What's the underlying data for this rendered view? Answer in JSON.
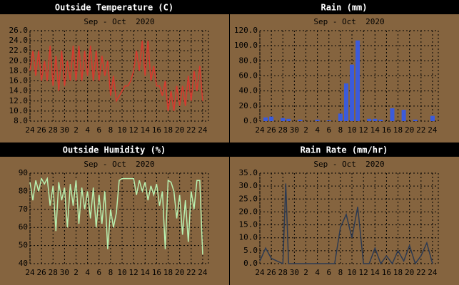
{
  "chart_data": [
    {
      "type": "line",
      "title": "Outside Temperature (C)",
      "subtitle": "Sep - Oct  2020",
      "color": "#d8382e",
      "x": [
        0,
        0.5,
        1,
        1.5,
        2,
        2.5,
        3,
        3.5,
        4,
        4.5,
        5,
        5.5,
        6,
        6.5,
        7,
        7.5,
        8,
        8.5,
        9,
        9.5,
        10,
        10.5,
        11,
        11.5,
        12,
        12.5,
        13,
        13.5,
        14,
        14.5,
        15,
        15.5,
        16,
        16.5,
        17,
        17.5,
        18,
        18.5,
        19,
        19.5,
        20,
        20.5,
        21,
        21.5,
        22,
        22.5,
        23,
        23.5,
        24,
        24.5,
        25,
        25.5,
        26,
        26.5,
        27,
        27.5,
        28,
        28.5,
        29,
        29.5,
        30
      ],
      "values": [
        18,
        22,
        17,
        22,
        16,
        20,
        16,
        23,
        15,
        21,
        14,
        22,
        15,
        20,
        16,
        23,
        16,
        23,
        16,
        22,
        17,
        23,
        16,
        22,
        16,
        21,
        17,
        20,
        13,
        17,
        12,
        13,
        14,
        15,
        15,
        16,
        18,
        22,
        18,
        24,
        17,
        24,
        16,
        19,
        15,
        15,
        13,
        16,
        10,
        14,
        10,
        15,
        11,
        15,
        11,
        17,
        12,
        18,
        14,
        19,
        12
      ],
      "xlim": [
        0,
        31
      ],
      "xticks": [
        {
          "value": 0,
          "label": "24"
        },
        {
          "value": 2,
          "label": "26"
        },
        {
          "value": 4,
          "label": "28"
        },
        {
          "value": 6,
          "label": "30"
        },
        {
          "value": 8,
          "label": "2"
        },
        {
          "value": 10,
          "label": "4"
        },
        {
          "value": 12,
          "label": "6"
        },
        {
          "value": 14,
          "label": "8"
        },
        {
          "value": 16,
          "label": "10"
        },
        {
          "value": 18,
          "label": "12"
        },
        {
          "value": 20,
          "label": "14"
        },
        {
          "value": 22,
          "label": "16"
        },
        {
          "value": 24,
          "label": "18"
        },
        {
          "value": 26,
          "label": "20"
        },
        {
          "value": 28,
          "label": "22"
        },
        {
          "value": 30,
          "label": "24"
        }
      ],
      "ylim": [
        8,
        26
      ],
      "yticks": [
        {
          "value": 8,
          "label": "8.0"
        },
        {
          "value": 10,
          "label": "10.0"
        },
        {
          "value": 12,
          "label": "12.0"
        },
        {
          "value": 14,
          "label": "14.0"
        },
        {
          "value": 16,
          "label": "16.0"
        },
        {
          "value": 18,
          "label": "18.0"
        },
        {
          "value": 20,
          "label": "20.0"
        },
        {
          "value": 22,
          "label": "22.0"
        },
        {
          "value": 24,
          "label": "24.0"
        },
        {
          "value": 26,
          "label": "26.0"
        }
      ],
      "grid": true
    },
    {
      "type": "bar",
      "title": "Rain (mm)",
      "subtitle": "Sep - Oct  2020",
      "color": "#3b5bdb",
      "x": [
        1,
        2,
        4,
        5,
        7,
        10,
        12,
        14,
        15,
        16,
        17,
        19,
        20,
        21,
        23,
        25,
        27,
        30
      ],
      "values": [
        5,
        6,
        4,
        3,
        2,
        2,
        1,
        10,
        50,
        75,
        107,
        3,
        3,
        2,
        17,
        15,
        2,
        7
      ],
      "xlim": [
        0,
        31
      ],
      "xticks": [
        {
          "value": 0,
          "label": "24"
        },
        {
          "value": 2,
          "label": "26"
        },
        {
          "value": 4,
          "label": "28"
        },
        {
          "value": 6,
          "label": "30"
        },
        {
          "value": 8,
          "label": "2"
        },
        {
          "value": 10,
          "label": "4"
        },
        {
          "value": 12,
          "label": "6"
        },
        {
          "value": 14,
          "label": "8"
        },
        {
          "value": 16,
          "label": "10"
        },
        {
          "value": 18,
          "label": "12"
        },
        {
          "value": 20,
          "label": "14"
        },
        {
          "value": 22,
          "label": "16"
        },
        {
          "value": 24,
          "label": "18"
        },
        {
          "value": 26,
          "label": "20"
        },
        {
          "value": 28,
          "label": "22"
        },
        {
          "value": 30,
          "label": "24"
        }
      ],
      "ylim": [
        0,
        120
      ],
      "yticks": [
        {
          "value": 0,
          "label": "0.0"
        },
        {
          "value": 20,
          "label": "20.0"
        },
        {
          "value": 40,
          "label": "40.0"
        },
        {
          "value": 60,
          "label": "60.0"
        },
        {
          "value": 80,
          "label": "80.0"
        },
        {
          "value": 100,
          "label": "100.0"
        },
        {
          "value": 120,
          "label": "120.0"
        }
      ],
      "grid": true
    },
    {
      "type": "line",
      "title": "Outside Humidity (%)",
      "subtitle": "Sep - Oct  2020",
      "color": "#b8f0b0",
      "x": [
        0,
        0.5,
        1,
        1.5,
        2,
        2.5,
        3,
        3.5,
        4,
        4.5,
        5,
        5.5,
        6,
        6.5,
        7,
        7.5,
        8,
        8.5,
        9,
        9.5,
        10,
        10.5,
        11,
        11.5,
        12,
        12.5,
        13,
        13.5,
        14,
        14.5,
        15,
        15.5,
        16,
        16.5,
        17,
        17.5,
        18,
        18.5,
        19,
        19.5,
        20,
        20.5,
        21,
        21.5,
        22,
        22.5,
        23,
        23.5,
        24,
        24.5,
        25,
        25.5,
        26,
        26.5,
        27,
        27.5,
        28,
        28.5,
        29,
        29.5,
        30
      ],
      "values": [
        85,
        75,
        86,
        80,
        87,
        84,
        87,
        72,
        83,
        58,
        85,
        75,
        82,
        60,
        84,
        72,
        86,
        62,
        82,
        70,
        80,
        65,
        82,
        60,
        78,
        62,
        80,
        48,
        70,
        60,
        68,
        86,
        87,
        87,
        87,
        87,
        87,
        78,
        86,
        80,
        85,
        75,
        83,
        78,
        84,
        72,
        80,
        48,
        86,
        85,
        80,
        65,
        78,
        56,
        75,
        52,
        80,
        70,
        86,
        86,
        45
      ],
      "xlim": [
        0,
        31
      ],
      "xticks": [
        {
          "value": 0,
          "label": "24"
        },
        {
          "value": 2,
          "label": "26"
        },
        {
          "value": 4,
          "label": "28"
        },
        {
          "value": 6,
          "label": "30"
        },
        {
          "value": 8,
          "label": "2"
        },
        {
          "value": 10,
          "label": "4"
        },
        {
          "value": 12,
          "label": "6"
        },
        {
          "value": 14,
          "label": "8"
        },
        {
          "value": 16,
          "label": "10"
        },
        {
          "value": 18,
          "label": "12"
        },
        {
          "value": 20,
          "label": "14"
        },
        {
          "value": 22,
          "label": "16"
        },
        {
          "value": 24,
          "label": "18"
        },
        {
          "value": 26,
          "label": "20"
        },
        {
          "value": 28,
          "label": "22"
        },
        {
          "value": 30,
          "label": "24"
        }
      ],
      "ylim": [
        40,
        90
      ],
      "yticks": [
        40,
        50,
        60,
        70,
        80,
        90
      ],
      "grid": true
    },
    {
      "type": "line",
      "title": "Rain Rate (mm/hr)",
      "subtitle": "Sep - Oct  2020",
      "color": "#2c3a52",
      "x": [
        0,
        1,
        2,
        3,
        4,
        4.5,
        5,
        6,
        7,
        8,
        9,
        10,
        11,
        12,
        13,
        14,
        15,
        16,
        17,
        18,
        19,
        20,
        21,
        22,
        23,
        24,
        25,
        26,
        27,
        28,
        29,
        30
      ],
      "values": [
        1,
        6,
        2,
        1,
        0,
        31,
        0,
        0,
        0,
        0,
        0,
        0,
        0,
        0,
        0,
        14,
        19,
        10,
        22,
        0,
        0,
        6,
        0,
        3,
        0,
        5,
        1,
        7,
        0,
        3,
        8,
        0
      ],
      "xlim": [
        0,
        31
      ],
      "xticks": [
        {
          "value": 0,
          "label": "24"
        },
        {
          "value": 2,
          "label": "26"
        },
        {
          "value": 4,
          "label": "28"
        },
        {
          "value": 6,
          "label": "30"
        },
        {
          "value": 8,
          "label": "2"
        },
        {
          "value": 10,
          "label": "4"
        },
        {
          "value": 12,
          "label": "6"
        },
        {
          "value": 14,
          "label": "8"
        },
        {
          "value": 16,
          "label": "10"
        },
        {
          "value": 18,
          "label": "12"
        },
        {
          "value": 20,
          "label": "14"
        },
        {
          "value": 22,
          "label": "16"
        },
        {
          "value": 24,
          "label": "18"
        },
        {
          "value": 26,
          "label": "20"
        },
        {
          "value": 28,
          "label": "22"
        },
        {
          "value": 30,
          "label": "24"
        }
      ],
      "ylim": [
        0,
        35
      ],
      "yticks": [
        {
          "value": 0,
          "label": "0.0"
        },
        {
          "value": 5,
          "label": "5.0"
        },
        {
          "value": 10,
          "label": "10.0"
        },
        {
          "value": 15,
          "label": "15.0"
        },
        {
          "value": 20,
          "label": "20.0"
        },
        {
          "value": 25,
          "label": "25.0"
        },
        {
          "value": 30,
          "label": "30.0"
        },
        {
          "value": 35,
          "label": "35.0"
        }
      ],
      "grid": true
    }
  ]
}
